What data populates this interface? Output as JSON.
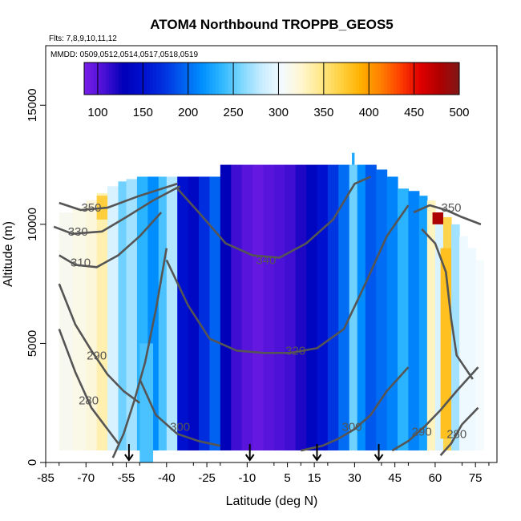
{
  "chart_data": {
    "type": "heatmap",
    "title": "ATOM4 Northbound TROPPB_GEOS5",
    "flights_note": "Flts: 7,8,9,10,11,12",
    "dates_note": "MMDD: 0509,0512,0514,0517,0518,0519",
    "xlabel": "Latitude (deg N)",
    "ylabel": "Altitude (m)",
    "xlim": [
      -85,
      83
    ],
    "ylim": [
      0,
      17500
    ],
    "x_ticks": [
      -85,
      -70,
      -55,
      -40,
      -25,
      -10,
      5,
      15,
      30,
      45,
      60,
      75
    ],
    "y_ticks": [
      0,
      5000,
      10000,
      15000
    ],
    "colorbar": {
      "min": 85,
      "max": 500,
      "ticks": [
        100,
        150,
        200,
        250,
        300,
        350,
        400,
        450,
        500
      ],
      "colors": [
        "#7a1ee8",
        "#4a10d6",
        "#0000b8",
        "#0010d0",
        "#0030e0",
        "#0060f0",
        "#0090ff",
        "#30b8ff",
        "#80d8ff",
        "#c8ecff",
        "#f4fbff",
        "#fff6d0",
        "#ffe888",
        "#ffd040",
        "#ffb000",
        "#ff8000",
        "#ff4000",
        "#e00000",
        "#b00000",
        "#801818"
      ]
    },
    "columns": [
      {
        "x0": -80,
        "x1": -75,
        "top": 10500,
        "v": 310
      },
      {
        "x0": -75,
        "x1": -70,
        "top": 10700,
        "v": 315
      },
      {
        "x0": -70,
        "x1": -66,
        "top": 11000,
        "v": 320
      },
      {
        "x0": -66,
        "x1": -62,
        "top": 11300,
        "v": 335
      },
      {
        "x0": -62,
        "x1": -58,
        "top": 11600,
        "v": 290
      },
      {
        "x0": -58,
        "x1": -55,
        "top": 11800,
        "v": 255
      },
      {
        "x0": -55,
        "x1": -51,
        "top": 11900,
        "v": 270
      },
      {
        "x0": -51,
        "x1": -47,
        "top": 12000,
        "v": 235
      },
      {
        "x0": -47,
        "x1": -43,
        "top": 12000,
        "v": 215
      },
      {
        "x0": -43,
        "x1": -40,
        "top": 12000,
        "v": 245
      },
      {
        "x0": -40,
        "x1": -36,
        "top": 12000,
        "v": 275
      },
      {
        "x0": -36,
        "x1": -32,
        "top": 12000,
        "v": 150
      },
      {
        "x0": -32,
        "x1": -28,
        "top": 12000,
        "v": 140
      },
      {
        "x0": -28,
        "x1": -24,
        "top": 12000,
        "v": 170
      },
      {
        "x0": -24,
        "x1": -20,
        "top": 12000,
        "v": 195
      },
      {
        "x0": -20,
        "x1": -16,
        "top": 12500,
        "v": 130
      },
      {
        "x0": -16,
        "x1": -12,
        "top": 12500,
        "v": 110
      },
      {
        "x0": -12,
        "x1": -8,
        "top": 12500,
        "v": 100
      },
      {
        "x0": -8,
        "x1": -4,
        "top": 12500,
        "v": 95
      },
      {
        "x0": -4,
        "x1": 0,
        "top": 12500,
        "v": 100
      },
      {
        "x0": 0,
        "x1": 4,
        "top": 12500,
        "v": 105
      },
      {
        "x0": 4,
        "x1": 8,
        "top": 12500,
        "v": 110
      },
      {
        "x0": 8,
        "x1": 12,
        "top": 12500,
        "v": 120
      },
      {
        "x0": 12,
        "x1": 16,
        "top": 12500,
        "v": 135
      },
      {
        "x0": 16,
        "x1": 20,
        "top": 12500,
        "v": 150
      },
      {
        "x0": 20,
        "x1": 24,
        "top": 12500,
        "v": 175
      },
      {
        "x0": 24,
        "x1": 28,
        "top": 12500,
        "v": 200
      },
      {
        "x0": 28,
        "x1": 31,
        "top": 12500,
        "v": 255
      },
      {
        "x0": 31,
        "x1": 34,
        "top": 12500,
        "v": 215
      },
      {
        "x0": 34,
        "x1": 38,
        "top": 12500,
        "v": 190
      },
      {
        "x0": 38,
        "x1": 42,
        "top": 12300,
        "v": 200
      },
      {
        "x0": 42,
        "x1": 46,
        "top": 12000,
        "v": 210
      },
      {
        "x0": 46,
        "x1": 50,
        "top": 11500,
        "v": 235
      },
      {
        "x0": 50,
        "x1": 54,
        "top": 11400,
        "v": 210
      },
      {
        "x0": 54,
        "x1": 57,
        "top": 11200,
        "v": 225
      },
      {
        "x0": 57,
        "x1": 60,
        "top": 11000,
        "v": 330
      },
      {
        "x0": 60,
        "x1": 63,
        "top": 10500,
        "v": 290
      },
      {
        "x0": 63,
        "x1": 66,
        "top": 10300,
        "v": 365
      },
      {
        "x0": 66,
        "x1": 69,
        "top": 10000,
        "v": 270
      },
      {
        "x0": 69,
        "x1": 72,
        "top": 9500,
        "v": 300
      },
      {
        "x0": 72,
        "x1": 75,
        "top": 9000,
        "v": 300
      },
      {
        "x0": 75,
        "x1": 78,
        "top": 8500,
        "v": 305
      }
    ],
    "patches": [
      {
        "x0": -66,
        "x1": -62,
        "y0": 10200,
        "y1": 11200,
        "v": 370
      },
      {
        "x0": 59,
        "x1": 63,
        "y0": 10000,
        "y1": 10500,
        "v": 480
      },
      {
        "x0": 62,
        "x1": 66,
        "y0": 1000,
        "y1": 9000,
        "v": 380
      },
      {
        "x0": 29,
        "x1": 30,
        "y0": 12500,
        "y1": 13000,
        "v": 230
      },
      {
        "x0": -50,
        "x1": -45,
        "y0": 0,
        "y1": 5000,
        "v": 245
      }
    ],
    "contours": [
      {
        "label": "350",
        "label_at": [
          -68,
          10700
        ],
        "points": [
          [
            -80,
            10900
          ],
          [
            -72,
            10600
          ],
          [
            -62,
            10700
          ],
          [
            -50,
            11200
          ],
          [
            -36,
            11700
          ]
        ]
      },
      {
        "label": "330",
        "label_at": [
          -73,
          9700
        ],
        "points": [
          [
            -82,
            9900
          ],
          [
            -75,
            9600
          ],
          [
            -64,
            9700
          ],
          [
            -55,
            10300
          ],
          [
            -45,
            11000
          ],
          [
            -35,
            11600
          ]
        ]
      },
      {
        "label": "310",
        "label_at": [
          -72,
          8400
        ],
        "points": [
          [
            -80,
            8700
          ],
          [
            -74,
            8300
          ],
          [
            -66,
            8200
          ],
          [
            -58,
            8700
          ],
          [
            -50,
            9500
          ],
          [
            -42,
            10500
          ]
        ]
      },
      {
        "label": "290",
        "label_at": [
          -66,
          4500
        ],
        "points": [
          [
            -80,
            7500
          ],
          [
            -74,
            5800
          ],
          [
            -68,
            4700
          ],
          [
            -62,
            3700
          ],
          [
            -56,
            3000
          ],
          [
            -50,
            2500
          ]
        ]
      },
      {
        "label": "280",
        "label_at": [
          -69,
          2600
        ],
        "points": [
          [
            -80,
            5600
          ],
          [
            -74,
            3800
          ],
          [
            -68,
            2300
          ],
          [
            -62,
            1400
          ],
          [
            -58,
            800
          ]
        ]
      },
      {
        "label": "340",
        "label_at": [
          -3,
          8500
        ],
        "points": [
          [
            -36,
            11500
          ],
          [
            -28,
            10500
          ],
          [
            -18,
            9200
          ],
          [
            -8,
            8700
          ],
          [
            2,
            8600
          ],
          [
            12,
            9200
          ],
          [
            22,
            10200
          ],
          [
            30,
            11700
          ],
          [
            36,
            12000
          ]
        ]
      },
      {
        "label": "320",
        "label_at": [
          8,
          4700
        ],
        "points": [
          [
            -40,
            8500
          ],
          [
            -32,
            6600
          ],
          [
            -24,
            5200
          ],
          [
            -14,
            4700
          ],
          [
            -4,
            4600
          ],
          [
            6,
            4600
          ],
          [
            16,
            4800
          ],
          [
            26,
            5600
          ],
          [
            34,
            7500
          ],
          [
            42,
            9500
          ],
          [
            50,
            10800
          ]
        ]
      },
      {
        "label": "300",
        "label_at": [
          -35,
          1500
        ],
        "points": [
          [
            -50,
            3500
          ],
          [
            -44,
            2000
          ],
          [
            -36,
            1200
          ],
          [
            -28,
            900
          ],
          [
            -20,
            700
          ]
        ]
      },
      {
        "label": "300",
        "label_at": [
          29,
          1500
        ],
        "points": [
          [
            10,
            500
          ],
          [
            18,
            700
          ],
          [
            24,
            1000
          ],
          [
            30,
            1400
          ],
          [
            36,
            2000
          ],
          [
            42,
            3000
          ],
          [
            50,
            4000
          ]
        ]
      },
      {
        "label": "290",
        "label_at": [
          55,
          1300
        ],
        "points": [
          [
            44,
            500
          ],
          [
            50,
            900
          ],
          [
            56,
            1500
          ],
          [
            62,
            2200
          ],
          [
            68,
            3000
          ],
          [
            76,
            4000
          ]
        ]
      },
      {
        "label": "280",
        "label_at": [
          68,
          1200
        ],
        "points": [
          [
            62,
            300
          ],
          [
            66,
            800
          ],
          [
            70,
            1600
          ],
          [
            76,
            2300
          ]
        ]
      },
      {
        "label": "350",
        "label_at": [
          66,
          10700
        ],
        "points": [
          [
            52,
            10500
          ],
          [
            58,
            10800
          ],
          [
            64,
            10600
          ],
          [
            70,
            10300
          ],
          [
            77,
            10000
          ]
        ]
      },
      {
        "label": "",
        "label_at": null,
        "points": [
          [
            55,
            9800
          ],
          [
            60,
            9200
          ],
          [
            64,
            8000
          ],
          [
            66,
            6000
          ],
          [
            68,
            4500
          ],
          [
            74,
            3500
          ]
        ]
      },
      {
        "label": "",
        "label_at": null,
        "points": [
          [
            -60,
            200
          ],
          [
            -56,
            1200
          ],
          [
            -52,
            2600
          ],
          [
            -48,
            4200
          ],
          [
            -44,
            6400
          ],
          [
            -40,
            9000
          ]
        ]
      }
    ],
    "arrows_x": [
      -54,
      -9,
      16,
      39
    ]
  }
}
